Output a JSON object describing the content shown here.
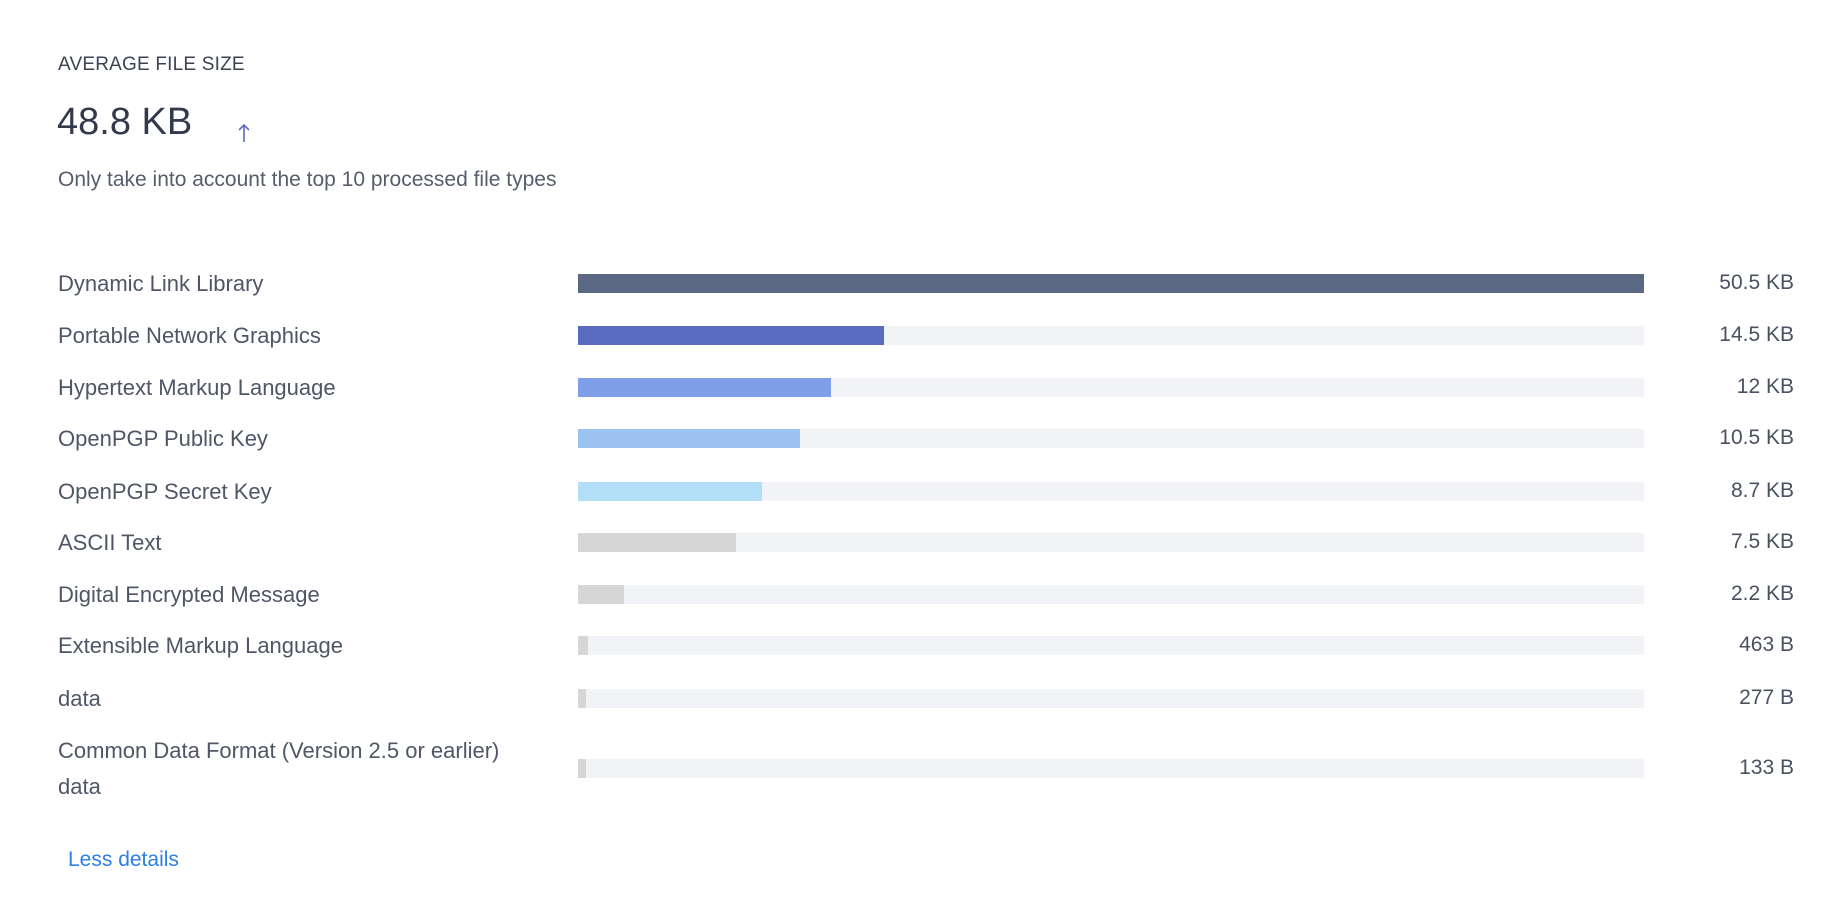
{
  "header": {
    "label": "AVERAGE FILE SIZE",
    "value": "48.8 KB",
    "trend_icon": "arrow-up-icon",
    "note": "Only take into account the top 10 processed file types"
  },
  "chart_data": {
    "type": "bar",
    "orientation": "horizontal",
    "unit": "bytes",
    "max": 51712,
    "categories": [
      "Dynamic Link Library",
      "Portable Network Graphics",
      "Hypertext Markup Language",
      "OpenPGP Public Key",
      "OpenPGP Secret Key",
      "ASCII Text",
      "Digital Encrypted Message",
      "Extensible Markup Language",
      "data",
      "Common Data Format (Version 2.5 or earlier) data"
    ],
    "values": [
      51712,
      14848,
      12288,
      10752,
      8909,
      7680,
      2253,
      463,
      277,
      133
    ],
    "value_labels": [
      "50.5 KB",
      "14.5 KB",
      "12 KB",
      "10.5 KB",
      "8.7 KB",
      "7.5 KB",
      "2.2 KB",
      "463 B",
      "277 B",
      "133 B"
    ],
    "colors": [
      "#5b6884",
      "#5b6bc0",
      "#7fa0e8",
      "#9cc3f0",
      "#b3def8",
      "#d6d6d6",
      "#d6d6d6",
      "#d6d6d6",
      "#d6d6d6",
      "#d6d6d6"
    ],
    "track_color": "#f2f3f7",
    "grid": false,
    "legend": "none"
  },
  "footer": {
    "link": "Less details"
  }
}
